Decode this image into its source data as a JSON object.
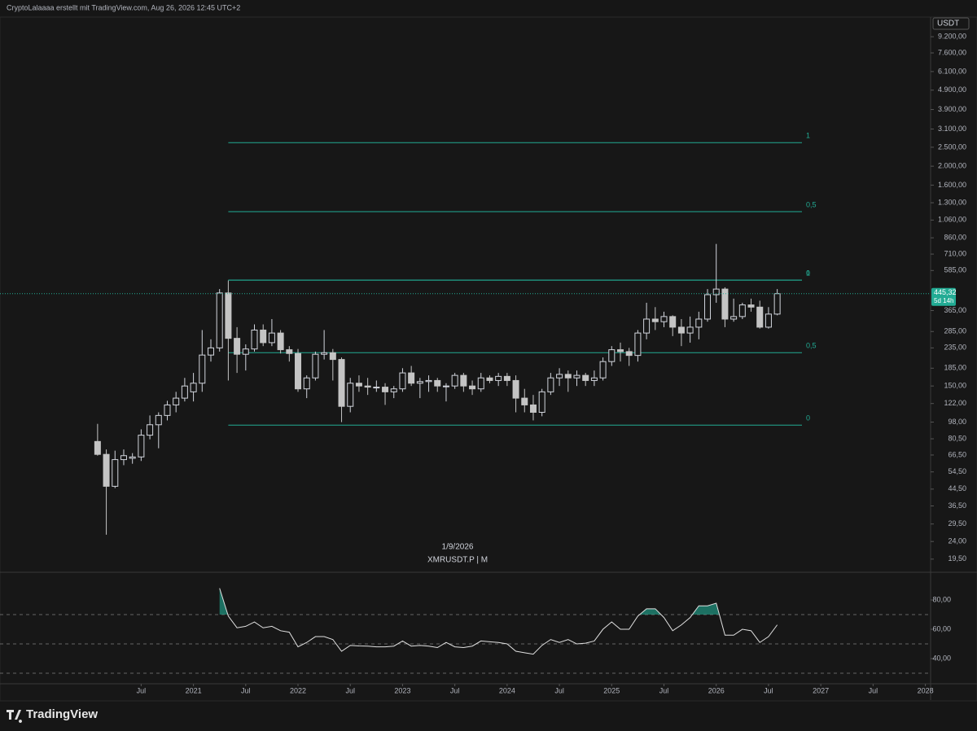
{
  "header": "CryptoLalaaaa erstellt mit TradingView.com, Aug 26, 2026 12:45 UTC+2",
  "footer": "TradingView",
  "chart_data": [
    {
      "type": "candlestick",
      "symbol": "XMRUSDT.P | M",
      "date_label": "1/9/2026",
      "currency": "USDT",
      "log_scale": true,
      "ylim": [
        16.7,
        11480
      ],
      "yticks": [
        {
          "value": 9200,
          "label": "9.200,00"
        },
        {
          "value": 7600,
          "label": "7.600,00"
        },
        {
          "value": 6100,
          "label": "6.100,00"
        },
        {
          "value": 4900,
          "label": "4.900,00"
        },
        {
          "value": 3900,
          "label": "3.900,00"
        },
        {
          "value": 3100,
          "label": "3.100,00"
        },
        {
          "value": 2500,
          "label": "2.500,00"
        },
        {
          "value": 2000,
          "label": "2.000,00"
        },
        {
          "value": 1600,
          "label": "1.600,00"
        },
        {
          "value": 1300,
          "label": "1.300,00"
        },
        {
          "value": 1060,
          "label": "1.060,00"
        },
        {
          "value": 860,
          "label": "860,00"
        },
        {
          "value": 710,
          "label": "710,00"
        },
        {
          "value": 585,
          "label": "585,00"
        },
        {
          "value": 365,
          "label": "365,00"
        },
        {
          "value": 285,
          "label": "285,00"
        },
        {
          "value": 235,
          "label": "235,00"
        },
        {
          "value": 185,
          "label": "185,00"
        },
        {
          "value": 150,
          "label": "150,00"
        },
        {
          "value": 122,
          "label": "122,00"
        },
        {
          "value": 98,
          "label": "98,00"
        },
        {
          "value": 80.5,
          "label": "80,50"
        },
        {
          "value": 66.5,
          "label": "66,50"
        },
        {
          "value": 54.5,
          "label": "54,50"
        },
        {
          "value": 44.5,
          "label": "44,50"
        },
        {
          "value": 36.5,
          "label": "36,50"
        },
        {
          "value": 29.5,
          "label": "29,50"
        },
        {
          "value": 24,
          "label": "24,00"
        },
        {
          "value": 19.5,
          "label": "19,50"
        }
      ],
      "xlim": [
        -11.2,
        95.6
      ],
      "xticks": [
        {
          "value": 5,
          "label": "Jul"
        },
        {
          "value": 11,
          "label": "2021"
        },
        {
          "value": 17,
          "label": "Jul"
        },
        {
          "value": 23,
          "label": "2022"
        },
        {
          "value": 29,
          "label": "Jul"
        },
        {
          "value": 35,
          "label": "2023"
        },
        {
          "value": 41,
          "label": "Jul"
        },
        {
          "value": 47,
          "label": "2024"
        },
        {
          "value": 53,
          "label": "Jul"
        },
        {
          "value": 59,
          "label": "2025"
        },
        {
          "value": 65,
          "label": "Jul"
        },
        {
          "value": 71,
          "label": "2026"
        },
        {
          "value": 77,
          "label": "Jul"
        },
        {
          "value": 83,
          "label": "2027"
        },
        {
          "value": 89,
          "label": "Jul"
        },
        {
          "value": 95,
          "label": "2028"
        }
      ],
      "open": [
        78,
        67,
        46,
        63,
        64,
        65,
        84,
        95,
        106,
        120,
        130,
        140,
        155,
        216,
        235,
        449,
        263,
        218,
        232,
        290,
        250,
        280,
        230,
        220,
        145,
        165,
        218,
        222,
        205,
        118,
        155,
        150,
        148,
        148,
        140,
        145,
        175,
        155,
        158,
        160,
        150,
        150,
        170,
        150,
        145,
        165,
        160,
        168,
        160,
        130,
        120,
        110,
        140,
        165,
        172,
        165,
        170,
        160,
        165,
        200,
        230,
        225,
        215,
        280,
        330,
        320,
        340,
        300,
        280,
        300,
        330,
        440,
        470,
        330,
        340,
        390,
        380,
        300,
        350
      ],
      "high": [
        96,
        71,
        70,
        71,
        68,
        90,
        106,
        110,
        126,
        140,
        165,
        175,
        290,
        260,
        470,
        520,
        300,
        245,
        310,
        310,
        330,
        290,
        240,
        232,
        170,
        225,
        290,
        232,
        210,
        165,
        170,
        165,
        160,
        155,
        150,
        185,
        190,
        165,
        170,
        165,
        155,
        175,
        175,
        160,
        175,
        170,
        175,
        175,
        170,
        145,
        135,
        145,
        175,
        185,
        180,
        180,
        175,
        180,
        210,
        240,
        250,
        235,
        290,
        400,
        380,
        360,
        345,
        330,
        340,
        360,
        470,
        800,
        480,
        420,
        400,
        420,
        410,
        380,
        470
      ],
      "low": [
        66,
        26,
        45,
        59,
        60,
        62,
        80,
        72,
        100,
        110,
        125,
        125,
        140,
        200,
        225,
        160,
        175,
        180,
        225,
        240,
        240,
        220,
        200,
        140,
        130,
        160,
        205,
        160,
        98,
        110,
        140,
        135,
        140,
        120,
        130,
        140,
        150,
        130,
        140,
        140,
        125,
        145,
        140,
        135,
        140,
        155,
        150,
        150,
        110,
        110,
        100,
        105,
        135,
        150,
        140,
        150,
        150,
        150,
        160,
        190,
        200,
        190,
        200,
        260,
        290,
        300,
        270,
        240,
        250,
        260,
        320,
        400,
        300,
        320,
        330,
        360,
        295,
        295,
        345
      ],
      "close": [
        67,
        46,
        63,
        66,
        65,
        84,
        95,
        106,
        120,
        130,
        150,
        155,
        216,
        235,
        449,
        263,
        218,
        232,
        290,
        250,
        280,
        230,
        220,
        145,
        165,
        218,
        222,
        205,
        118,
        155,
        150,
        148,
        148,
        140,
        145,
        175,
        155,
        158,
        160,
        150,
        150,
        170,
        150,
        145,
        165,
        160,
        168,
        160,
        130,
        120,
        110,
        140,
        165,
        172,
        165,
        170,
        160,
        165,
        200,
        230,
        225,
        215,
        280,
        330,
        320,
        340,
        300,
        280,
        300,
        330,
        440,
        470,
        330,
        340,
        390,
        380,
        300,
        350,
        445.32
      ],
      "up_color": "#d1d4dc",
      "down_color": "#c4c4c4",
      "last_price_label": "445,32",
      "countdown": "5d 14h",
      "last_price_color": "#22ab94",
      "fib_retracements": [
        {
          "color": "#22ab94",
          "levels": [
            {
              "value": 2640,
              "label": "1"
            },
            {
              "value": 1170,
              "label": "0,5"
            },
            {
              "value": 522,
              "label": "0"
            }
          ]
        },
        {
          "color": "#22ab94",
          "levels": [
            {
              "value": 522,
              "label": "1"
            },
            {
              "value": 222,
              "label": "0,5"
            },
            {
              "value": 94.6,
              "label": "0"
            }
          ]
        }
      ]
    },
    {
      "type": "line",
      "color": "#e0e0e0",
      "fill_color": "#22ab94",
      "values": [
        null,
        null,
        null,
        null,
        null,
        null,
        null,
        null,
        null,
        null,
        null,
        null,
        null,
        null,
        88,
        69,
        61,
        62,
        65,
        61,
        62,
        59,
        58,
        48,
        51,
        55,
        55,
        53,
        45,
        49,
        48.6,
        48.5,
        48,
        48,
        48.5,
        52,
        48.5,
        49,
        48.5,
        47.5,
        51,
        48,
        47.5,
        48.5,
        52,
        51.5,
        51,
        50,
        45,
        44,
        43,
        49,
        53,
        51,
        53,
        50,
        50.5,
        52,
        60,
        65,
        60,
        60,
        69,
        74,
        74,
        68,
        59,
        63,
        68,
        76,
        76,
        77.8,
        56,
        56,
        60,
        59,
        51,
        55,
        63
      ],
      "ylim": [
        22.8,
        98.9
      ],
      "yticks": [
        {
          "value": 80,
          "label": "80,00"
        },
        {
          "value": 60,
          "label": "60,00"
        },
        {
          "value": 40,
          "label": "40,00"
        }
      ],
      "bands": [
        70,
        50,
        30
      ]
    }
  ]
}
